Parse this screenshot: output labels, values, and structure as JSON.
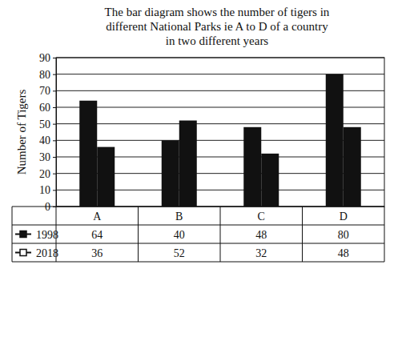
{
  "chart_data": {
    "type": "bar",
    "title": "The bar diagram shows the number of tigers in different National Parks ie A to D of a country in two different years",
    "y_label": "Number of Tigers",
    "categories": [
      "A",
      "B",
      "C",
      "D"
    ],
    "series": [
      {
        "name": "1998",
        "color": "#111111",
        "marker": "square",
        "values": [
          64,
          40,
          48,
          80
        ]
      },
      {
        "name": "2018",
        "color": "#111111",
        "marker": "square",
        "values": [
          36,
          52,
          32,
          48
        ]
      }
    ],
    "ylim": [
      0,
      90
    ],
    "yticks": [
      0,
      10,
      20,
      30,
      40,
      50,
      60,
      70,
      80,
      90
    ],
    "grid": true,
    "data_labels": true
  }
}
